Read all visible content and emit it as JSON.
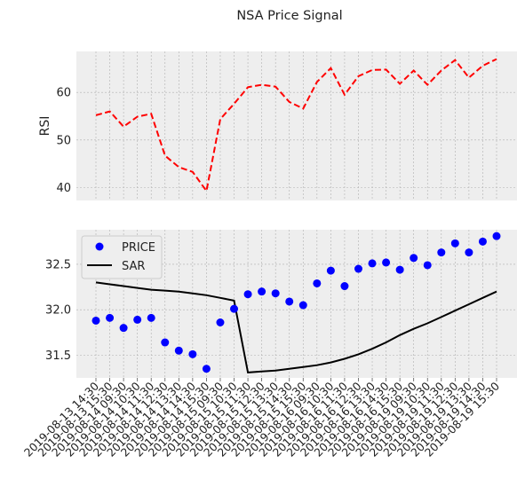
{
  "figure": {
    "title": "NSA Price Signal"
  },
  "chart_data": [
    {
      "type": "line",
      "panel": "top",
      "ylabel": "RSI",
      "xlabel": "",
      "ylim": [
        37.3,
        68.6
      ],
      "yticks": [
        40,
        50,
        60
      ],
      "grid": true,
      "series": [
        {
          "style": "dashed",
          "color": "#ff0000",
          "values": [
            55.2,
            56.0,
            52.8,
            54.9,
            55.5,
            46.7,
            44.3,
            43.3,
            39.3,
            54.4,
            57.6,
            61.1,
            61.6,
            61.2,
            58.0,
            56.6,
            62.2,
            65.1,
            59.5,
            63.4,
            64.7,
            64.8,
            61.8,
            64.6,
            61.6,
            64.6,
            66.8,
            63.1,
            65.6,
            67.0
          ]
        }
      ]
    },
    {
      "type": "line",
      "panel": "bottom",
      "xlabel": "",
      "ylabel": "",
      "ylim": [
        31.25,
        32.88
      ],
      "yticks": [
        31.5,
        32.0,
        32.5
      ],
      "grid": true,
      "legend_position": "top-left",
      "x": [
        "2019-08-13 14:30",
        "2019-08-13 15:30",
        "2019-08-14 09:30",
        "2019-08-14 10:30",
        "2019-08-14 11:30",
        "2019-08-14 12:30",
        "2019-08-14 13:30",
        "2019-08-14 14:30",
        "2019-08-14 15:30",
        "2019-08-15 09:30",
        "2019-08-15 10:30",
        "2019-08-15 11:30",
        "2019-08-15 12:30",
        "2019-08-15 13:30",
        "2019-08-15 14:30",
        "2019-08-15 15:30",
        "2019-08-16 09:30",
        "2019-08-16 10:30",
        "2019-08-16 11:30",
        "2019-08-16 12:30",
        "2019-08-16 13:30",
        "2019-08-16 14:30",
        "2019-08-16 15:30",
        "2019-08-19 09:30",
        "2019-08-19 10:30",
        "2019-08-19 11:30",
        "2019-08-19 12:30",
        "2019-08-19 13:30",
        "2019-08-19 14:30",
        "2019-08-19 15:30"
      ],
      "series": [
        {
          "name": "PRICE",
          "style": "markers",
          "color": "#0000ff",
          "values": [
            31.88,
            31.91,
            31.8,
            31.89,
            31.91,
            31.64,
            31.55,
            31.51,
            31.35,
            31.86,
            32.01,
            32.17,
            32.2,
            32.18,
            32.09,
            32.05,
            32.29,
            32.43,
            32.26,
            32.45,
            32.51,
            32.52,
            32.44,
            32.57,
            32.49,
            32.63,
            32.73,
            32.63,
            32.75,
            32.81
          ]
        },
        {
          "name": "SAR",
          "style": "solid",
          "color": "#000000",
          "values": [
            32.3,
            32.28,
            32.26,
            32.24,
            32.22,
            32.21,
            32.2,
            32.18,
            32.16,
            32.13,
            32.1,
            31.31,
            31.32,
            31.33,
            31.35,
            31.37,
            31.39,
            31.42,
            31.46,
            31.51,
            31.57,
            31.64,
            31.72,
            31.79,
            31.85,
            31.92,
            31.99,
            32.06,
            32.13,
            32.2
          ]
        }
      ]
    }
  ]
}
